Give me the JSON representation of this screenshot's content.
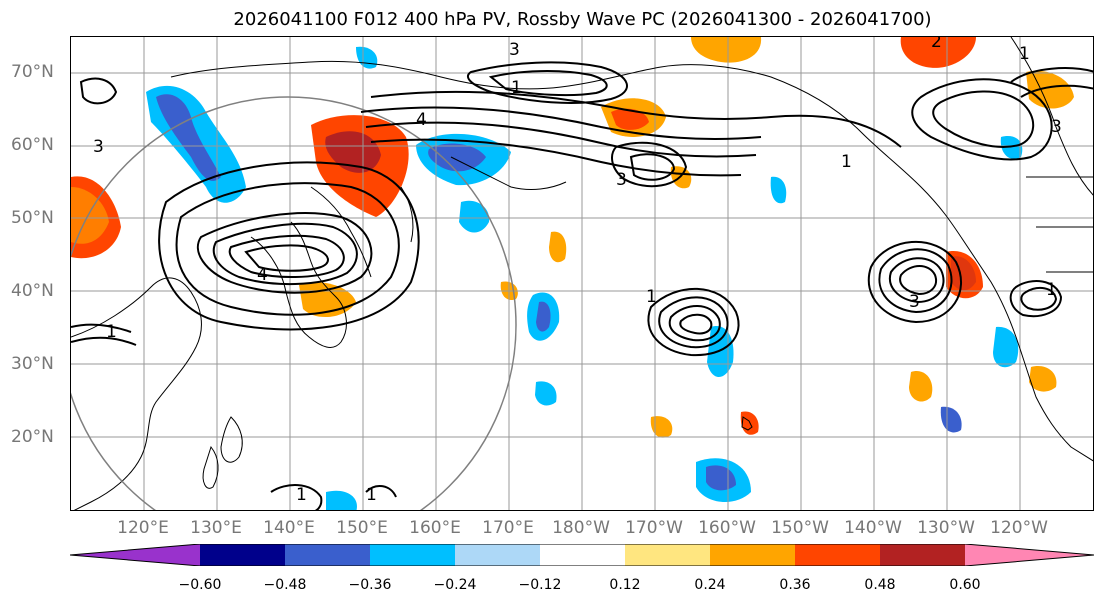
{
  "title": "2026041100 F012 400 hPa PV, Rossby Wave PC (2026041300 - 2026041700)",
  "latitude_labels": [
    "70°N",
    "60°N",
    "50°N",
    "40°N",
    "30°N",
    "20°N"
  ],
  "longitude_labels": [
    "120°E",
    "130°E",
    "140°E",
    "150°E",
    "160°E",
    "170°E",
    "180°W",
    "170°W",
    "160°W",
    "150°W",
    "140°W",
    "130°W",
    "120°W"
  ],
  "contour_labels": [
    "1",
    "2",
    "3",
    "4"
  ],
  "colorbar": {
    "ticks": [
      "−0.60",
      "−0.48",
      "−0.36",
      "−0.24",
      "−0.12",
      "0.12",
      "0.24",
      "0.36",
      "0.48",
      "0.60"
    ],
    "colors": [
      "#9932cc",
      "#00008b",
      "#3a5fcd",
      "#00bfff",
      "#add8f7",
      "#ffffff",
      "#ffe680",
      "#ffa500",
      "#ff4500",
      "#b22222",
      "#ff86b3"
    ]
  },
  "shading_colors": {
    "neg_strong": "#3a5fcd",
    "neg_mid": "#00bfff",
    "neg_weak": "#add8f7",
    "pos_weak": "#ffe680",
    "pos_mid": "#ffa500",
    "pos_strong": "#ff4500",
    "pos_max": "#b22222"
  }
}
